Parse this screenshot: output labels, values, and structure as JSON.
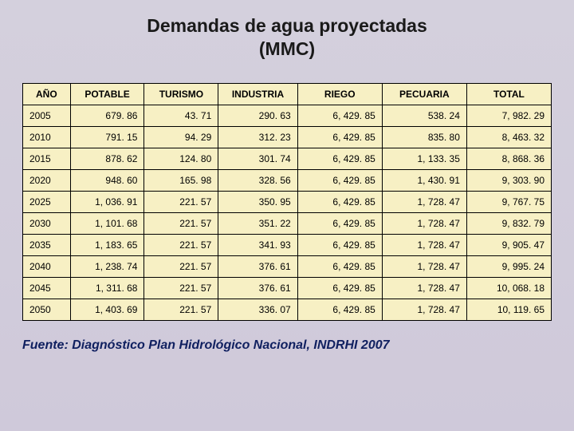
{
  "title_line1": "Demandas de agua proyectadas",
  "title_line2": "(MMC)",
  "table": {
    "columns": [
      "AÑO",
      "POTABLE",
      "TURISMO",
      "INDUSTRIA",
      "RIEGO",
      "PECUARIA",
      "TOTAL"
    ],
    "col_widths": [
      "9%",
      "14%",
      "14%",
      "15%",
      "16%",
      "16%",
      "16%"
    ],
    "rows": [
      [
        "2005",
        "679. 86",
        "43. 71",
        "290. 63",
        "6, 429. 85",
        "538. 24",
        "7, 982. 29"
      ],
      [
        "2010",
        "791. 15",
        "94. 29",
        "312. 23",
        "6, 429. 85",
        "835. 80",
        "8, 463. 32"
      ],
      [
        "2015",
        "878. 62",
        "124. 80",
        "301. 74",
        "6, 429. 85",
        "1, 133. 35",
        "8, 868. 36"
      ],
      [
        "2020",
        "948. 60",
        "165. 98",
        "328. 56",
        "6, 429. 85",
        "1, 430. 91",
        "9, 303. 90"
      ],
      [
        "2025",
        "1, 036. 91",
        "221. 57",
        "350. 95",
        "6, 429. 85",
        "1, 728. 47",
        "9, 767. 75"
      ],
      [
        "2030",
        "1, 101. 68",
        "221. 57",
        "351. 22",
        "6, 429. 85",
        "1, 728. 47",
        "9, 832. 79"
      ],
      [
        "2035",
        "1, 183. 65",
        "221. 57",
        "341. 93",
        "6, 429. 85",
        "1, 728. 47",
        "9, 905. 47"
      ],
      [
        "2040",
        "1, 238. 74",
        "221. 57",
        "376. 61",
        "6, 429. 85",
        "1, 728. 47",
        "9, 995. 24"
      ],
      [
        "2045",
        "1, 311. 68",
        "221. 57",
        "376. 61",
        "6, 429. 85",
        "1, 728. 47",
        "10, 068. 18"
      ],
      [
        "2050",
        "1, 403. 69",
        "221. 57",
        "336. 07",
        "6, 429. 85",
        "1, 728. 47",
        "10, 119. 65"
      ]
    ]
  },
  "source": "Fuente: Diagnóstico Plan Hidrológico Nacional, INDRHI 2007",
  "colors": {
    "bg_top": "#d4d0dd",
    "bg_bottom": "#cfc9da",
    "table_bg": "#f7f0c4",
    "border": "#000000",
    "title_text": "#1a1a1a",
    "source_text": "#102060"
  },
  "fontsizes": {
    "title": 23,
    "table": 12,
    "source": 16
  }
}
